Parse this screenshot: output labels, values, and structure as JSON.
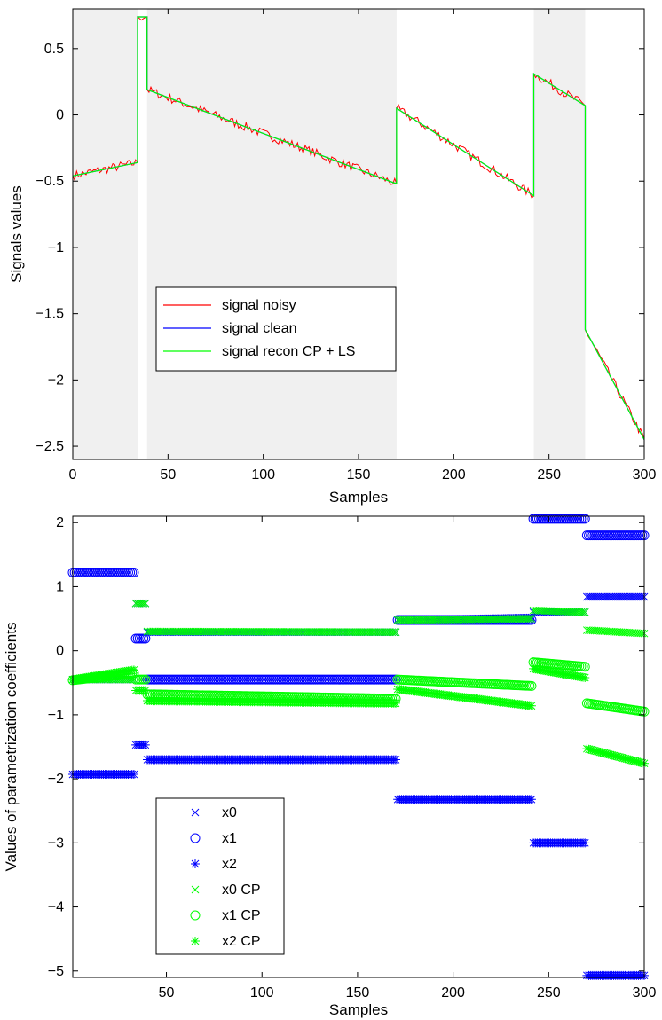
{
  "chart_data": [
    {
      "type": "line",
      "xlabel": "Samples",
      "ylabel": "Signals values",
      "xlim": [
        0,
        300
      ],
      "ylim": [
        -2.6,
        0.8
      ],
      "xticks": [
        "0",
        "50",
        "100",
        "150",
        "200",
        "250",
        "300"
      ],
      "yticks": [
        "0.5",
        "0",
        "−0.5",
        "−1",
        "−1.5",
        "−2",
        "−2.5"
      ],
      "grid": false,
      "legend_position": "center-left",
      "shaded_regions": [
        [
          0,
          34
        ],
        [
          39,
          170
        ],
        [
          242,
          269
        ]
      ],
      "segments": [
        {
          "x": [
            0,
            34
          ],
          "y": [
            -0.46,
            -0.36
          ]
        },
        {
          "x": [
            34,
            39
          ],
          "y": [
            0.74,
            0.74
          ]
        },
        {
          "x": [
            39,
            170
          ],
          "y": [
            0.19,
            -0.52
          ]
        },
        {
          "x": [
            170,
            242
          ],
          "y": [
            0.05,
            -0.61
          ]
        },
        {
          "x": [
            242,
            269
          ],
          "y": [
            0.31,
            0.07
          ]
        },
        {
          "x": [
            269,
            300
          ],
          "y": [
            -1.62,
            -2.45
          ]
        }
      ],
      "series": [
        {
          "name": "signal noisy",
          "color": "#ff0000"
        },
        {
          "name": "signal clean",
          "color": "#0000ff"
        },
        {
          "name": "signal recon CP + LS",
          "color": "#00ff00"
        }
      ]
    },
    {
      "type": "scatter",
      "xlabel": "Samples",
      "ylabel": "Values of parametrization coefficients",
      "xlim": [
        1,
        300
      ],
      "ylim": [
        -5.1,
        2.1
      ],
      "xticks": [
        "50",
        "100",
        "150",
        "200",
        "250",
        "300"
      ],
      "yticks": [
        "2",
        "1",
        "0",
        "−1",
        "−2",
        "−3",
        "−4",
        "−5"
      ],
      "grid": false,
      "legend_position": "lower-left",
      "segments": [
        {
          "x": [
            1,
            33
          ],
          "x0": [
            -0.45,
            -0.45
          ],
          "x1": [
            1.22,
            1.22
          ],
          "x2": [
            -1.93,
            -1.93
          ],
          "x0cp": [
            -0.45,
            -0.45
          ],
          "x1cp": [
            -0.46,
            -0.35
          ],
          "x2cp": [
            -0.45,
            -0.3
          ]
        },
        {
          "x": [
            34,
            39
          ],
          "x0": [
            0.74,
            0.74
          ],
          "x1": [
            0.19,
            0.19
          ],
          "x2": [
            -1.47,
            -1.47
          ],
          "x0cp": [
            0.74,
            0.74
          ],
          "x1cp": [
            -0.45,
            -0.45
          ],
          "x2cp": [
            -0.62,
            -0.62
          ]
        },
        {
          "x": [
            40,
            170
          ],
          "x0": [
            0.29,
            0.29
          ],
          "x1": [
            -0.45,
            -0.45
          ],
          "x2": [
            -1.7,
            -1.7
          ],
          "x0cp": [
            0.3,
            0.29
          ],
          "x1cp": [
            -0.68,
            -0.75
          ],
          "x2cp": [
            -0.78,
            -0.82
          ]
        },
        {
          "x": [
            171,
            241
          ],
          "x0": [
            0.48,
            0.52
          ],
          "x1": [
            0.48,
            0.48
          ],
          "x2": [
            -2.32,
            -2.32
          ],
          "x0cp": [
            0.48,
            0.5
          ],
          "x1cp": [
            -0.45,
            -0.55
          ],
          "x2cp": [
            -0.6,
            -0.86
          ]
        },
        {
          "x": [
            242,
            269
          ],
          "x0": [
            0.6,
            0.6
          ],
          "x1": [
            2.06,
            2.06
          ],
          "x2": [
            -3.0,
            -3.0
          ],
          "x0cp": [
            0.63,
            0.6
          ],
          "x1cp": [
            -0.18,
            -0.25
          ],
          "x2cp": [
            -0.28,
            -0.42
          ]
        },
        {
          "x": [
            270,
            300
          ],
          "x0": [
            0.84,
            0.84
          ],
          "x1": [
            1.8,
            1.8
          ],
          "x2": [
            -5.07,
            -5.07
          ],
          "x0cp": [
            0.32,
            0.27
          ],
          "x1cp": [
            -0.82,
            -0.95
          ],
          "x2cp": [
            -1.53,
            -1.76
          ]
        }
      ],
      "series": [
        {
          "name": "x0",
          "color": "#0000ff",
          "marker": "x"
        },
        {
          "name": "x1",
          "color": "#0000ff",
          "marker": "o"
        },
        {
          "name": "x2",
          "color": "#0000ff",
          "marker": "*"
        },
        {
          "name": "x0 CP",
          "color": "#00ff00",
          "marker": "x"
        },
        {
          "name": "x1 CP",
          "color": "#00ff00",
          "marker": "o"
        },
        {
          "name": "x2 CP",
          "color": "#00ff00",
          "marker": "*"
        }
      ]
    }
  ]
}
